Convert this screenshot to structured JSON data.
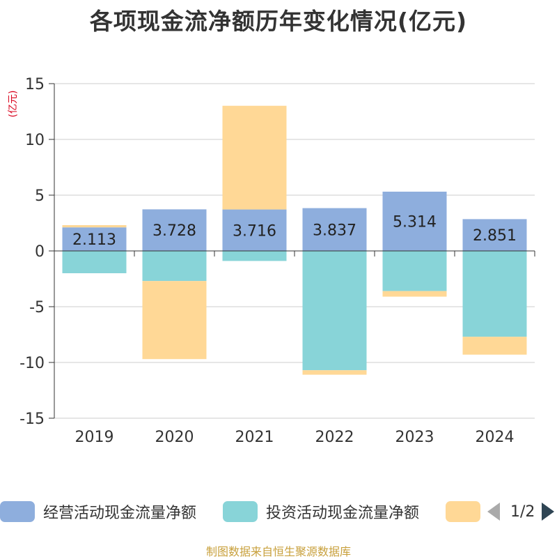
{
  "title": "各项现金流净额历年变化情况(亿元)",
  "unit_label": "(亿元)",
  "source": "制图数据来自恒生聚源数据库",
  "legend": {
    "items": [
      {
        "label": "经营活动现金流量净额",
        "color": "#8eaedd"
      },
      {
        "label": "投资活动现金流量净额",
        "color": "#88d4d8"
      },
      {
        "label": "",
        "color": "#ffd896"
      }
    ],
    "page_text": "1/2"
  },
  "chart_data": {
    "type": "bar",
    "stacked": true,
    "categories": [
      "2019",
      "2020",
      "2021",
      "2022",
      "2023",
      "2024"
    ],
    "series": [
      {
        "name": "经营活动现金流量净额",
        "color": "#8eaedd",
        "values": [
          2.113,
          3.728,
          3.716,
          3.837,
          5.314,
          2.851
        ],
        "labels": [
          "2.113",
          "3.728",
          "3.716",
          "3.837",
          "5.314",
          "2.851"
        ]
      },
      {
        "name": "投资活动现金流量净额",
        "color": "#88d4d8",
        "values": [
          -2.0,
          -2.7,
          -0.9,
          -10.7,
          -3.6,
          -7.7
        ]
      },
      {
        "color": "#ffd896",
        "values": [
          0.2,
          -7.0,
          9.3,
          -0.4,
          -0.5,
          -1.6
        ]
      }
    ],
    "ylim": [
      -15,
      15
    ],
    "yticks": [
      15,
      10,
      5,
      0,
      -5,
      -10,
      -15
    ],
    "grid": true,
    "legend_position": "bottom"
  }
}
